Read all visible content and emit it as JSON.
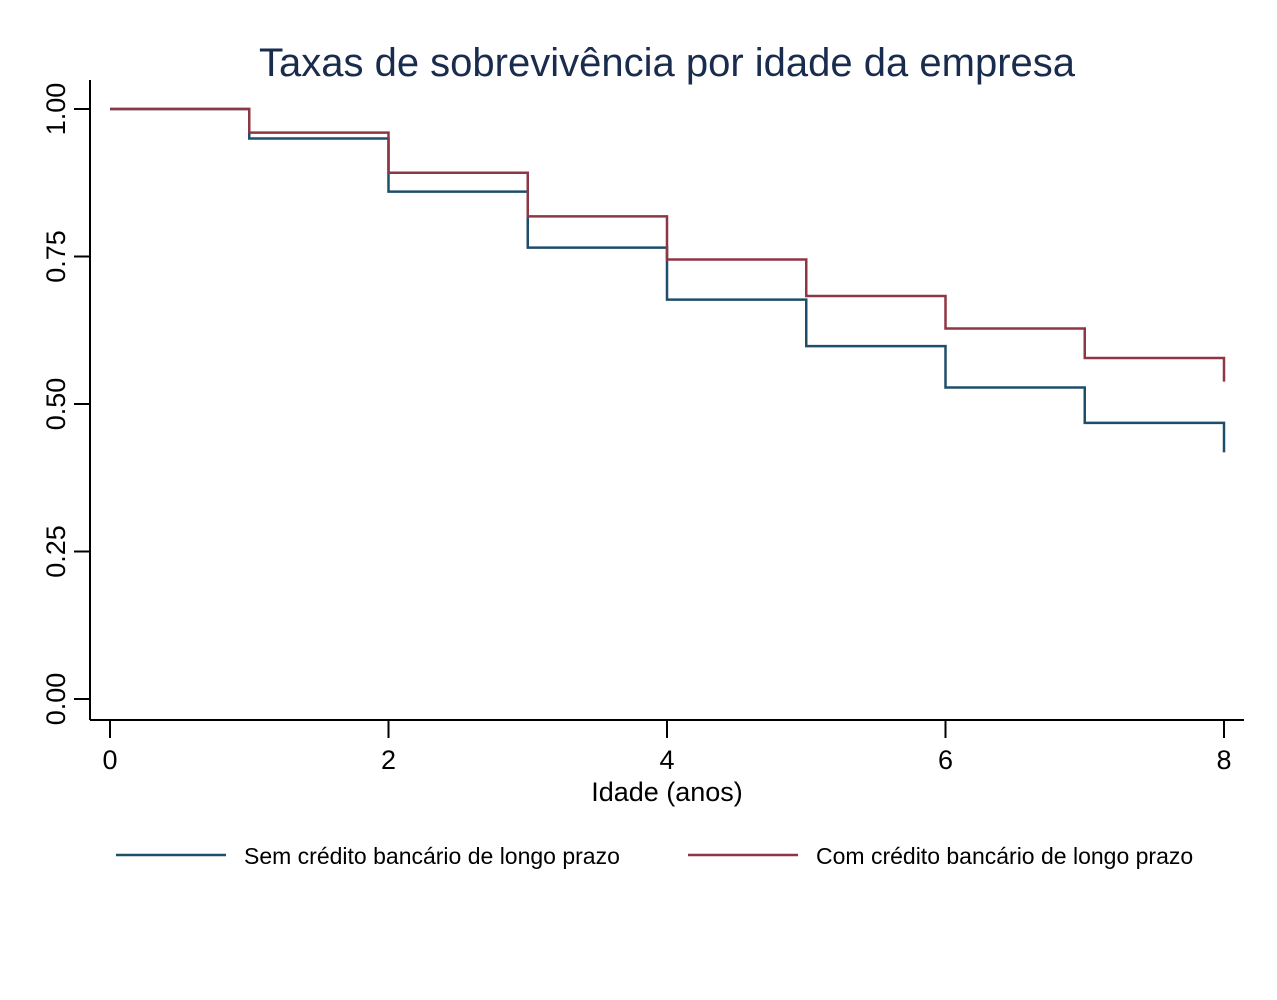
{
  "chart_data": {
    "type": "line",
    "step": true,
    "title": "Taxas de sobrevivência por idade da empresa",
    "xlabel": "Idade (anos)",
    "ylabel": "",
    "xlim": [
      0,
      8
    ],
    "ylim": [
      0,
      1
    ],
    "x_ticks": [
      "0",
      "2",
      "4",
      "6",
      "8"
    ],
    "y_ticks": [
      "0.00",
      "0.25",
      "0.50",
      "0.75",
      "1.00"
    ],
    "grid": false,
    "legend_position": "bottom",
    "series": [
      {
        "name": "Sem crédito bancário de longo prazo",
        "color": "#1f4e6b",
        "x": [
          0,
          1,
          2,
          3,
          4,
          5,
          6,
          7,
          8
        ],
        "y": [
          1.0,
          0.95,
          0.86,
          0.765,
          0.677,
          0.598,
          0.528,
          0.468,
          0.418
        ]
      },
      {
        "name": "Com crédito bancário de longo prazo",
        "color": "#8f3644",
        "x": [
          0,
          1,
          2,
          3,
          4,
          5,
          6,
          7,
          8
        ],
        "y": [
          1.0,
          0.96,
          0.892,
          0.818,
          0.745,
          0.683,
          0.628,
          0.578,
          0.538
        ]
      }
    ]
  }
}
